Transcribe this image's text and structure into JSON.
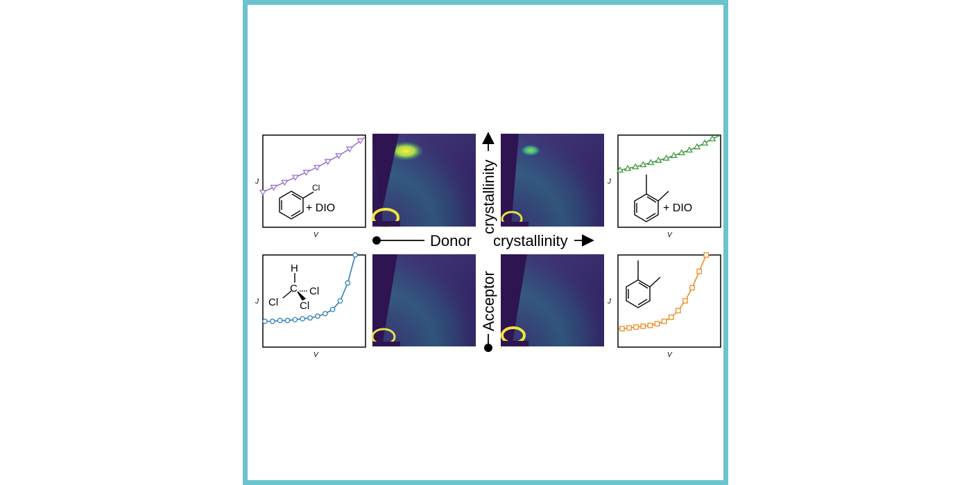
{
  "colors": {
    "frame": "#6cc2cd",
    "purple": "#9b72cf",
    "green": "#3a9a3a",
    "blue": "#2e7fb8",
    "orange": "#f08a24",
    "map_bg": "#3d2a6b",
    "map_yellow": "#f4e33a"
  },
  "arrows": {
    "donor_prefix": "Donor",
    "donor_suffix": "crystallinity",
    "acceptor_prefix": "Acceptor",
    "acceptor_suffix": "crystallinity"
  },
  "plots": [
    {
      "id": "chlorobenzene-dio",
      "xlabel": "V",
      "ylabel": "J",
      "additive": "+ DIO",
      "molecule": "chlorobenzene",
      "substituent": "Cl",
      "marker": "down-triangle"
    },
    {
      "id": "oxylene-dio",
      "xlabel": "V",
      "ylabel": "J",
      "additive": "+ DIO",
      "molecule": "o-xylene",
      "marker": "up-triangle"
    },
    {
      "id": "chloroform",
      "xlabel": "V",
      "ylabel": "J",
      "molecule": "chloroform",
      "atoms": {
        "h": "H",
        "c": "C",
        "cl1": "Cl",
        "cl2": "Cl",
        "cl3": "Cl"
      },
      "marker": "circle"
    },
    {
      "id": "oxylene",
      "xlabel": "V",
      "ylabel": "J",
      "molecule": "o-xylene",
      "marker": "square"
    }
  ],
  "chart_data": [
    {
      "type": "line",
      "title": "",
      "xlabel": "V",
      "ylabel": "J",
      "series": [
        {
          "name": "chlorobenzene + DIO",
          "x": [
            0,
            1,
            2,
            3,
            4,
            5,
            6,
            7,
            8,
            9
          ],
          "y": [
            0.2,
            0.26,
            0.32,
            0.38,
            0.44,
            0.5,
            0.57,
            0.64,
            0.72,
            0.82
          ]
        }
      ]
    },
    {
      "type": "line",
      "title": "",
      "xlabel": "V",
      "ylabel": "J",
      "series": [
        {
          "name": "o-xylene + DIO",
          "x": [
            0,
            1,
            2,
            3,
            4,
            5,
            6,
            7,
            8,
            9,
            10,
            11,
            12
          ],
          "y": [
            0.2,
            0.23,
            0.26,
            0.3,
            0.34,
            0.38,
            0.42,
            0.47,
            0.52,
            0.57,
            0.63,
            0.7,
            0.78
          ]
        }
      ]
    },
    {
      "type": "line",
      "title": "",
      "xlabel": "V",
      "ylabel": "J",
      "series": [
        {
          "name": "chloroform",
          "x": [
            0,
            1,
            2,
            3,
            4,
            5,
            6,
            7,
            8,
            9,
            10,
            11,
            12
          ],
          "y": [
            0.0,
            0.0,
            0.01,
            0.01,
            0.02,
            0.03,
            0.04,
            0.06,
            0.09,
            0.14,
            0.24,
            0.45,
            0.78
          ]
        }
      ]
    },
    {
      "type": "line",
      "title": "",
      "xlabel": "V",
      "ylabel": "J",
      "series": [
        {
          "name": "o-xylene",
          "x": [
            0,
            1,
            2,
            3,
            4,
            5,
            6,
            7,
            8,
            9,
            10,
            11,
            12
          ],
          "y": [
            0.0,
            0.01,
            0.02,
            0.03,
            0.04,
            0.06,
            0.09,
            0.14,
            0.22,
            0.34,
            0.5,
            0.7,
            0.9
          ]
        }
      ]
    }
  ]
}
